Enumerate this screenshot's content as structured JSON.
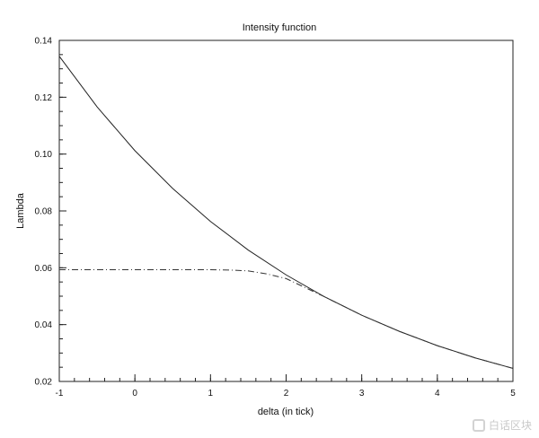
{
  "chart_data": {
    "type": "line",
    "title": "Intensity function",
    "xlabel": "delta (in tick)",
    "ylabel": "Lambda",
    "xlim": [
      -1,
      5
    ],
    "ylim": [
      0.02,
      0.14
    ],
    "x_ticks": [
      -1,
      0,
      1,
      2,
      3,
      4,
      5
    ],
    "x_tick_labels": [
      "-1",
      "0",
      "1",
      "2",
      "3",
      "4",
      "5"
    ],
    "y_ticks": [
      0.02,
      0.04,
      0.06,
      0.08,
      0.1,
      0.12,
      0.14
    ],
    "y_tick_labels": [
      "0.02",
      "0.04",
      "0.06",
      "0.08",
      "0.10",
      "0.12",
      "0.14"
    ],
    "grid": false,
    "series": [
      {
        "style": "solid",
        "color": "#222222",
        "x": [
          -1,
          -0.5,
          0,
          0.5,
          1,
          1.5,
          2,
          2.5,
          3,
          3.5,
          4,
          4.5,
          5
        ],
        "y": [
          0.1344,
          0.1166,
          0.1012,
          0.0879,
          0.0763,
          0.0662,
          0.0575,
          0.0499,
          0.0433,
          0.0376,
          0.0326,
          0.0283,
          0.0246
        ]
      },
      {
        "style": "dash-dot",
        "color": "#333333",
        "x": [
          -1,
          -0.5,
          0,
          0.5,
          1,
          1.25,
          1.5,
          1.75,
          2,
          2.5,
          3,
          3.5,
          4,
          4.5,
          5
        ],
        "y": [
          0.0593,
          0.0593,
          0.0593,
          0.0593,
          0.0593,
          0.0592,
          0.0589,
          0.0578,
          0.0562,
          0.0499,
          0.0433,
          0.0376,
          0.0326,
          0.0283,
          0.0246
        ]
      }
    ]
  },
  "watermark": {
    "text": "白话区块"
  }
}
